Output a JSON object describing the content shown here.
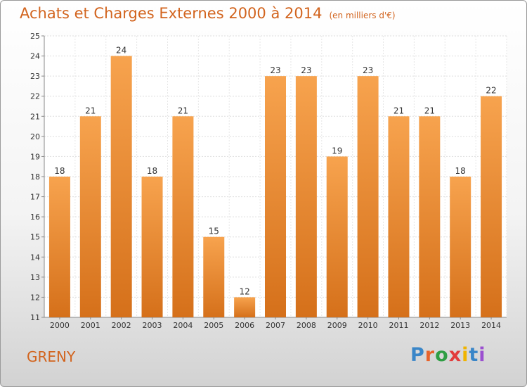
{
  "header": {
    "title": "Achats et Charges Externes 2000 à 2014",
    "unit": "(en milliers d'€)"
  },
  "footer": {
    "location": "GRENY",
    "logo": {
      "text": "Proxiti",
      "letter_colors": [
        "#3a86c8",
        "#e8632b",
        "#2f9e44",
        "#e23b3b",
        "#f0b400",
        "#3a86c8",
        "#9b4fd0"
      ]
    }
  },
  "colors": {
    "bar_top": "#f7a34e",
    "bar_bottom": "#d5701a",
    "accent": "#d2641e"
  },
  "chart_data": {
    "type": "bar",
    "title": "Achats et Charges Externes 2000 à 2014",
    "subtitle": "(en milliers d'€)",
    "categories": [
      "2000",
      "2001",
      "2002",
      "2003",
      "2004",
      "2005",
      "2006",
      "2007",
      "2008",
      "2009",
      "2010",
      "2011",
      "2012",
      "2013",
      "2014"
    ],
    "values": [
      18,
      21,
      24,
      18,
      21,
      15,
      12,
      23,
      23,
      19,
      23,
      21,
      21,
      18,
      22
    ],
    "data_labels": [
      "18",
      "21",
      "24",
      "18",
      "21",
      "15",
      "12",
      "23",
      "23",
      "19",
      "23",
      "21",
      "21",
      "18",
      "22"
    ],
    "ylim": [
      11,
      25
    ],
    "yticks": [
      "11",
      "12",
      "13",
      "14",
      "15",
      "16",
      "17",
      "18",
      "19",
      "20",
      "21",
      "22",
      "23",
      "24",
      "25"
    ],
    "grid": true
  }
}
